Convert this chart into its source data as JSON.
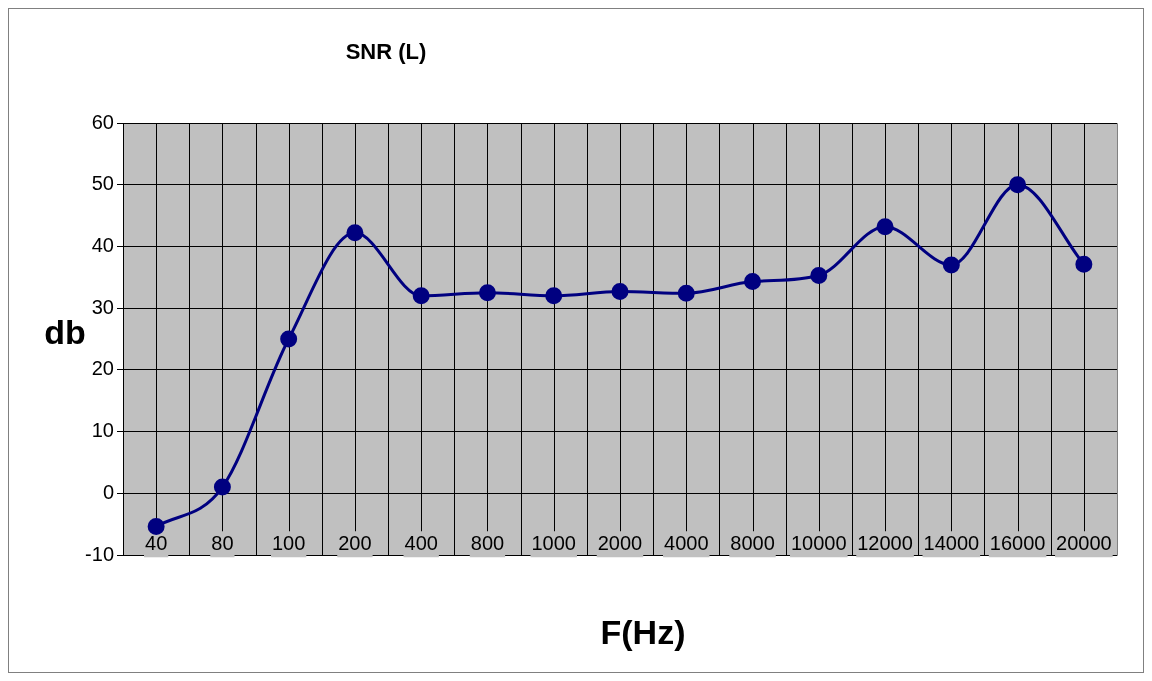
{
  "chart_data": {
    "type": "line",
    "title": "SNR (L)",
    "xlabel": "F(Hz)",
    "ylabel": "db",
    "categories": [
      "40",
      "80",
      "100",
      "200",
      "400",
      "800",
      "1000",
      "2000",
      "4000",
      "8000",
      "10000",
      "12000",
      "14000",
      "16000",
      "20000"
    ],
    "series": [
      {
        "color": "#000080",
        "values": [
          -5.4,
          1.0,
          25,
          42.2,
          32,
          32.5,
          32,
          32.7,
          32.4,
          34.3,
          35.3,
          43.2,
          37,
          50,
          37.1
        ]
      }
    ],
    "ylim": [
      -10,
      60
    ],
    "yticks": [
      -10,
      0,
      10,
      20,
      30,
      40,
      50,
      60
    ],
    "grid": true,
    "legend": false,
    "marker": "circle",
    "line_style": "solid"
  }
}
